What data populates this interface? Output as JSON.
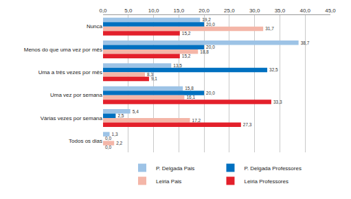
{
  "chart_data": {
    "type": "bar",
    "orientation": "horizontal",
    "categories": [
      "Nunca",
      "Menos do que uma vez por mês",
      "Uma a três vezes por mês",
      "Uma vez por semana",
      "Várias vezes por semana",
      "Todos os dias"
    ],
    "series": [
      {
        "name": "P. Delgada Pais",
        "color": "#9dc3e6",
        "values": [
          19.2,
          38.7,
          13.5,
          15.8,
          5.4,
          1.3
        ],
        "value_labels": [
          "19,2",
          "38,7",
          "13,5",
          "15,8",
          "5,4",
          "1,3"
        ]
      },
      {
        "name": "P. Delgada Professores",
        "color": "#0070c0",
        "values": [
          20.0,
          20.0,
          32.5,
          20.0,
          2.5,
          0.0
        ],
        "value_labels": [
          "20,0",
          "20,0",
          "32,5",
          "20,0",
          "2,5",
          "0,0"
        ]
      },
      {
        "name": "Leiria Pais",
        "color": "#f4b6a8",
        "values": [
          31.7,
          18.8,
          8.3,
          16.1,
          17.2,
          2.2
        ],
        "value_labels": [
          "31,7",
          "18,8",
          "8,3",
          "16,1",
          "17,2",
          "2,2"
        ]
      },
      {
        "name": "Leiria Professores",
        "color": "#e3202b",
        "values": [
          15.2,
          15.2,
          9.1,
          33.3,
          27.3,
          0.0
        ],
        "value_labels": [
          "15,2",
          "15,2",
          "9,1",
          "33,3",
          "27,3",
          "0,0"
        ]
      }
    ],
    "xlim": [
      0,
      45
    ],
    "xticks": [
      {
        "value": 0,
        "label": "0,0"
      },
      {
        "value": 5,
        "label": "5,0"
      },
      {
        "value": 10,
        "label": "10,0"
      },
      {
        "value": 15,
        "label": "15,0"
      },
      {
        "value": 20,
        "label": "20,0"
      },
      {
        "value": 25,
        "label": "25,0"
      },
      {
        "value": 30,
        "label": "30,0"
      },
      {
        "value": 35,
        "label": "35,0"
      },
      {
        "value": 40,
        "label": "40,0"
      },
      {
        "value": 45,
        "label": "45,0"
      }
    ],
    "grid": true,
    "legend": "bottom",
    "data_labels": true
  }
}
